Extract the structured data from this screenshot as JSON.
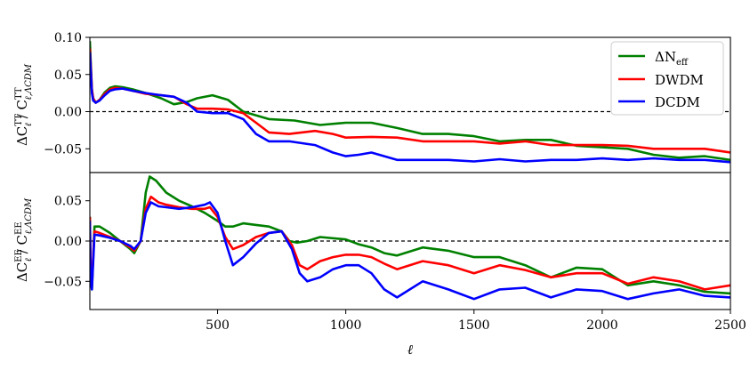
{
  "colors": {
    "green": "#008000",
    "red": "#ff0000",
    "blue": "#0000ff",
    "reference_line": "#000000"
  },
  "chart_data": [
    {
      "type": "line",
      "panel": "top",
      "xlim": [
        2,
        2500
      ],
      "ylim": [
        -0.082,
        0.1
      ],
      "yticks": [
        0.1,
        0.05,
        0.0,
        -0.05
      ],
      "ytick_labels": [
        "0.10",
        "0.05",
        "0.00",
        "−0.05"
      ],
      "ylabel": "ΔC_ℓ^TT / C_ℓ,ΛCDM^TT",
      "reference_line_y": 0,
      "legend_position": "top-right",
      "grid": false,
      "series": [
        {
          "name": "ΔN_eff",
          "color": "green",
          "x": [
            2,
            10,
            15,
            25,
            40,
            60,
            80,
            100,
            130,
            170,
            220,
            280,
            330,
            380,
            420,
            480,
            540,
            600,
            700,
            800,
            900,
            1000,
            1100,
            1200,
            1300,
            1400,
            1500,
            1600,
            1700,
            1800,
            1900,
            2000,
            2100,
            2200,
            2300,
            2400,
            2500
          ],
          "y": [
            0.095,
            0.03,
            0.018,
            0.012,
            0.016,
            0.026,
            0.032,
            0.034,
            0.033,
            0.03,
            0.025,
            0.018,
            0.01,
            0.013,
            0.018,
            0.022,
            0.016,
            0.0,
            -0.01,
            -0.012,
            -0.018,
            -0.015,
            -0.015,
            -0.022,
            -0.03,
            -0.03,
            -0.033,
            -0.04,
            -0.038,
            -0.038,
            -0.046,
            -0.048,
            -0.05,
            -0.058,
            -0.062,
            -0.06,
            -0.065
          ]
        },
        {
          "name": "DWDM",
          "color": "red",
          "x": [
            2,
            10,
            15,
            25,
            40,
            60,
            80,
            100,
            130,
            170,
            220,
            280,
            330,
            380,
            420,
            480,
            540,
            600,
            650,
            700,
            780,
            880,
            950,
            1000,
            1100,
            1200,
            1300,
            1400,
            1500,
            1600,
            1700,
            1800,
            1900,
            2000,
            2100,
            2200,
            2300,
            2400,
            2500
          ],
          "y": [
            0.085,
            0.03,
            0.018,
            0.012,
            0.016,
            0.024,
            0.03,
            0.032,
            0.031,
            0.028,
            0.024,
            0.022,
            0.02,
            0.01,
            0.004,
            0.004,
            0.003,
            -0.002,
            -0.015,
            -0.028,
            -0.03,
            -0.026,
            -0.03,
            -0.035,
            -0.034,
            -0.035,
            -0.04,
            -0.04,
            -0.04,
            -0.043,
            -0.04,
            -0.045,
            -0.045,
            -0.045,
            -0.046,
            -0.05,
            -0.05,
            -0.05,
            -0.055
          ]
        },
        {
          "name": "DCDM",
          "color": "blue",
          "x": [
            2,
            10,
            15,
            25,
            40,
            60,
            80,
            100,
            130,
            170,
            220,
            280,
            330,
            380,
            420,
            480,
            540,
            600,
            650,
            700,
            780,
            880,
            950,
            1000,
            1050,
            1100,
            1200,
            1300,
            1400,
            1500,
            1600,
            1700,
            1800,
            1900,
            2000,
            2100,
            2200,
            2300,
            2400,
            2500
          ],
          "y": [
            0.08,
            0.025,
            0.015,
            0.012,
            0.015,
            0.022,
            0.028,
            0.03,
            0.031,
            0.028,
            0.025,
            0.022,
            0.02,
            0.012,
            0.0,
            -0.002,
            -0.002,
            -0.01,
            -0.03,
            -0.04,
            -0.04,
            -0.045,
            -0.055,
            -0.06,
            -0.058,
            -0.055,
            -0.065,
            -0.065,
            -0.065,
            -0.067,
            -0.064,
            -0.067,
            -0.065,
            -0.065,
            -0.063,
            -0.065,
            -0.063,
            -0.065,
            -0.065,
            -0.068
          ]
        }
      ]
    },
    {
      "type": "line",
      "panel": "bottom",
      "xlim": [
        2,
        2500
      ],
      "ylim": [
        -0.085,
        0.085
      ],
      "xticks": [
        500,
        1000,
        1500,
        2000,
        2500
      ],
      "xtick_labels": [
        "500",
        "1000",
        "1500",
        "2000",
        "2500"
      ],
      "yticks": [
        0.05,
        0.0,
        -0.05
      ],
      "ytick_labels": [
        "0.05",
        "0.00",
        "−0.05"
      ],
      "xlabel": "ℓ",
      "ylabel": "ΔC_ℓ^EE / C_ℓ,ΛCDM^EE",
      "reference_line_y": 0,
      "grid": false,
      "series": [
        {
          "name": "ΔN_eff",
          "color": "green",
          "x": [
            2,
            5,
            10,
            20,
            40,
            80,
            120,
            160,
            175,
            200,
            220,
            235,
            260,
            300,
            350,
            400,
            450,
            500,
            530,
            560,
            600,
            650,
            700,
            750,
            780,
            810,
            850,
            900,
            1000,
            1050,
            1100,
            1150,
            1200,
            1300,
            1400,
            1500,
            1600,
            1700,
            1800,
            1900,
            2000,
            2100,
            2200,
            2300,
            2400,
            2500
          ],
          "y": [
            0.03,
            -0.04,
            -0.06,
            0.018,
            0.018,
            0.01,
            0.0,
            -0.01,
            -0.015,
            0.0,
            0.06,
            0.08,
            0.075,
            0.06,
            0.05,
            0.043,
            0.035,
            0.025,
            0.018,
            0.018,
            0.022,
            0.02,
            0.018,
            0.012,
            0.0,
            -0.002,
            0.0,
            0.005,
            0.002,
            -0.004,
            -0.008,
            -0.015,
            -0.018,
            -0.008,
            -0.012,
            -0.02,
            -0.02,
            -0.03,
            -0.045,
            -0.033,
            -0.035,
            -0.055,
            -0.05,
            -0.055,
            -0.063,
            -0.065
          ]
        },
        {
          "name": "DWDM",
          "color": "red",
          "x": [
            2,
            5,
            10,
            20,
            40,
            80,
            120,
            160,
            175,
            200,
            220,
            240,
            270,
            300,
            350,
            400,
            450,
            470,
            500,
            530,
            560,
            600,
            650,
            700,
            750,
            790,
            820,
            850,
            900,
            950,
            1000,
            1050,
            1100,
            1150,
            1200,
            1300,
            1400,
            1500,
            1600,
            1700,
            1800,
            1900,
            2000,
            2100,
            2200,
            2300,
            2400,
            2500
          ],
          "y": [
            0.03,
            -0.04,
            -0.05,
            0.012,
            0.01,
            0.005,
            0.0,
            -0.008,
            -0.012,
            0.0,
            0.04,
            0.055,
            0.048,
            0.045,
            0.042,
            0.04,
            0.04,
            0.042,
            0.03,
            0.005,
            -0.01,
            -0.005,
            0.005,
            0.01,
            0.012,
            -0.005,
            -0.03,
            -0.035,
            -0.025,
            -0.02,
            -0.017,
            -0.017,
            -0.02,
            -0.028,
            -0.035,
            -0.025,
            -0.03,
            -0.04,
            -0.03,
            -0.036,
            -0.045,
            -0.04,
            -0.04,
            -0.053,
            -0.045,
            -0.05,
            -0.06,
            -0.055
          ]
        },
        {
          "name": "DCDM",
          "color": "blue",
          "x": [
            2,
            5,
            10,
            20,
            40,
            80,
            120,
            160,
            175,
            200,
            220,
            240,
            270,
            300,
            350,
            400,
            450,
            470,
            500,
            530,
            560,
            600,
            650,
            700,
            750,
            790,
            820,
            850,
            900,
            950,
            1000,
            1050,
            1100,
            1150,
            1200,
            1300,
            1400,
            1500,
            1600,
            1700,
            1800,
            1900,
            2000,
            2100,
            2200,
            2300,
            2400,
            2500
          ],
          "y": [
            0.025,
            -0.05,
            -0.06,
            0.008,
            0.007,
            0.004,
            0.0,
            -0.006,
            -0.01,
            0.0,
            0.035,
            0.048,
            0.043,
            0.042,
            0.04,
            0.042,
            0.045,
            0.048,
            0.035,
            0.0,
            -0.03,
            -0.02,
            -0.003,
            0.01,
            0.012,
            -0.01,
            -0.04,
            -0.05,
            -0.045,
            -0.035,
            -0.03,
            -0.03,
            -0.04,
            -0.06,
            -0.07,
            -0.05,
            -0.06,
            -0.072,
            -0.06,
            -0.058,
            -0.07,
            -0.06,
            -0.062,
            -0.072,
            -0.065,
            -0.06,
            -0.068,
            -0.07
          ]
        }
      ]
    }
  ]
}
